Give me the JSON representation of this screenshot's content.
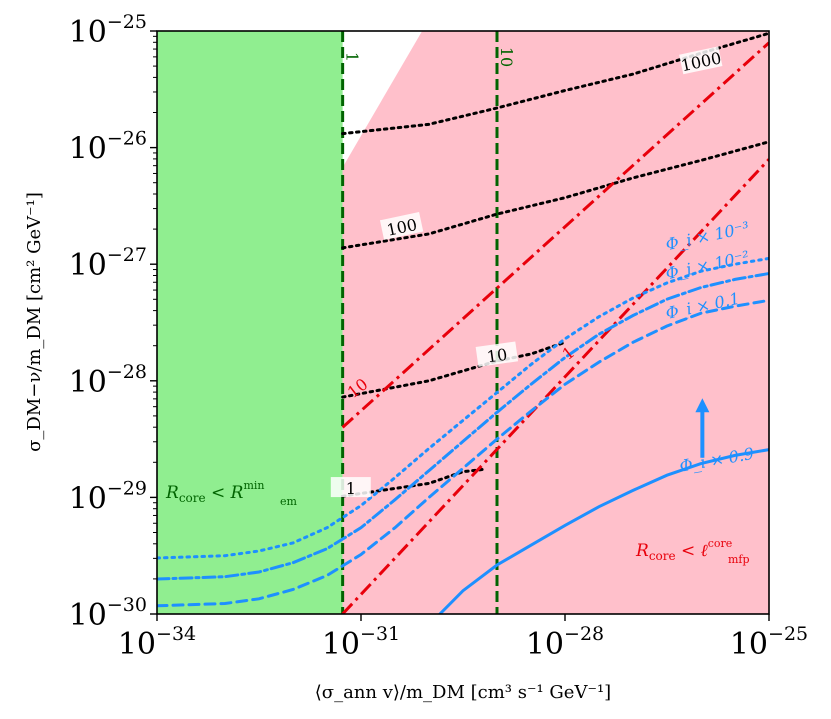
{
  "chart_data": {
    "type": "line",
    "xlabel": "⟨σ_ann v⟩/m_DM [cm³ s⁻¹ GeV⁻¹]",
    "ylabel": "σ_DM−ν/m_DM [cm² GeV⁻¹]",
    "x_log10_range": [
      -34,
      -25
    ],
    "y_log10_range": [
      -30,
      -25
    ],
    "x_ticks": [
      -34,
      -31,
      -28,
      -25
    ],
    "y_ticks": [
      -30,
      -29,
      -28,
      -27,
      -26,
      -25
    ],
    "tick_base": "10",
    "colors": {
      "green_region": "#90ee90",
      "pink_region": "#ffc0cb",
      "blue": "#1e90ff",
      "red": "#e8000b",
      "dark_green": "#006400",
      "black": "#000000"
    },
    "regions": [
      {
        "name": "R_core < R_em^min",
        "color": "green",
        "x_log10_max": -31.27
      },
      {
        "name": "R_core < ℓ_mfp^core",
        "color": "pink",
        "boundary": "y = x + 5.1 (log10)"
      }
    ],
    "region_labels": {
      "green_main": "R",
      "green_sub1": "core",
      "green_rel": " < R",
      "green_sup": "min",
      "green_sub2": "em",
      "pink_main": "R",
      "pink_sub1": "core",
      "pink_rel": " < ℓ",
      "pink_sup": "core",
      "pink_sub2": "mfp"
    },
    "vertical_lines": [
      {
        "label": "1",
        "x_log10": -31.27,
        "style": "dashed",
        "color": "dark_green"
      },
      {
        "label": "10",
        "x_log10": -29.0,
        "style": "dashed",
        "color": "dark_green"
      }
    ],
    "red_lines": [
      {
        "label": "1",
        "x_log10": [
          -31.27,
          -25.0
        ],
        "y_log10": [
          -30.0,
          -26.1
        ]
      },
      {
        "label": "10",
        "x_log10": [
          -31.27,
          -25.0
        ],
        "y_log10": [
          -28.4,
          -25.1
        ]
      }
    ],
    "black_contours": [
      {
        "label": "1000",
        "x_log10": [
          -31.27,
          -30.0,
          -29.0,
          -28.0,
          -27.0,
          -26.0,
          -25.0
        ],
        "y_log10": [
          -25.88,
          -25.8,
          -25.66,
          -25.51,
          -25.37,
          -25.19,
          -25.02
        ]
      },
      {
        "label": "100",
        "x_log10": [
          -31.27,
          -30.0,
          -29.0,
          -28.0,
          -27.0,
          -26.0,
          -25.0
        ],
        "y_log10": [
          -26.86,
          -26.74,
          -26.57,
          -26.43,
          -26.26,
          -26.11,
          -25.95
        ]
      },
      {
        "label": "10",
        "x_log10": [
          -31.27,
          -30.0,
          -29.0,
          -28.5,
          -28.0
        ],
        "y_log10": [
          -28.14,
          -28.0,
          -27.83,
          -27.77,
          -27.67
        ]
      },
      {
        "label": "1",
        "x_log10": [
          -31.27,
          -30.0,
          -29.5,
          -29.2
        ],
        "y_log10": [
          -28.99,
          -28.88,
          -28.78,
          -28.76
        ]
      }
    ],
    "blue_curves": [
      {
        "label": "Φ_i × 10⁻³",
        "style": "dotted",
        "x_log10": [
          -34,
          -33,
          -32.5,
          -32,
          -31.5,
          -31,
          -30.5,
          -30,
          -29.5,
          -29,
          -28.5,
          -28,
          -27.5,
          -27,
          -26.5,
          -26,
          -25.5,
          -25
        ],
        "y_log10": [
          -29.52,
          -29.5,
          -29.46,
          -29.39,
          -29.26,
          -29.07,
          -28.83,
          -28.58,
          -28.34,
          -28.1,
          -27.86,
          -27.64,
          -27.45,
          -27.29,
          -27.16,
          -27.06,
          -27.0,
          -26.95
        ]
      },
      {
        "label": "Φ_i × 10⁻²",
        "style": "dashdot",
        "x_log10": [
          -34,
          -33,
          -32.5,
          -32,
          -31.5,
          -31,
          -30.5,
          -30,
          -29.5,
          -29,
          -28.5,
          -28,
          -27.5,
          -27,
          -26.5,
          -26,
          -25.5,
          -25
        ],
        "y_log10": [
          -29.7,
          -29.68,
          -29.64,
          -29.56,
          -29.44,
          -29.26,
          -29.02,
          -28.77,
          -28.52,
          -28.27,
          -28.03,
          -27.8,
          -27.6,
          -27.44,
          -27.3,
          -27.2,
          -27.13,
          -27.08
        ]
      },
      {
        "label": "Φ_i × 0.1",
        "style": "dashed",
        "x_log10": [
          -34,
          -33,
          -32.5,
          -32,
          -31.5,
          -31,
          -30.5,
          -30,
          -29.5,
          -29,
          -28.5,
          -28,
          -27.5,
          -27,
          -26.5,
          -26,
          -25.5,
          -25
        ],
        "y_log10": [
          -29.93,
          -29.91,
          -29.87,
          -29.79,
          -29.67,
          -29.49,
          -29.26,
          -29.0,
          -28.75,
          -28.5,
          -28.26,
          -28.03,
          -27.84,
          -27.67,
          -27.53,
          -27.42,
          -27.36,
          -27.31
        ]
      },
      {
        "label": "Φ_i × 0.9",
        "style": "solid",
        "x_log10": [
          -29.84,
          -29.5,
          -29.0,
          -28.5,
          -28.0,
          -27.5,
          -27.0,
          -26.5,
          -26.0,
          -25.5,
          -25.0
        ],
        "y_log10": [
          -30.0,
          -29.8,
          -29.58,
          -29.41,
          -29.24,
          -29.08,
          -28.94,
          -28.81,
          -28.71,
          -28.64,
          -28.59
        ]
      }
    ],
    "arrow": {
      "x_log10": -25.98,
      "y_log10_from": -28.66,
      "y_log10_to": -28.15,
      "color": "blue"
    }
  }
}
